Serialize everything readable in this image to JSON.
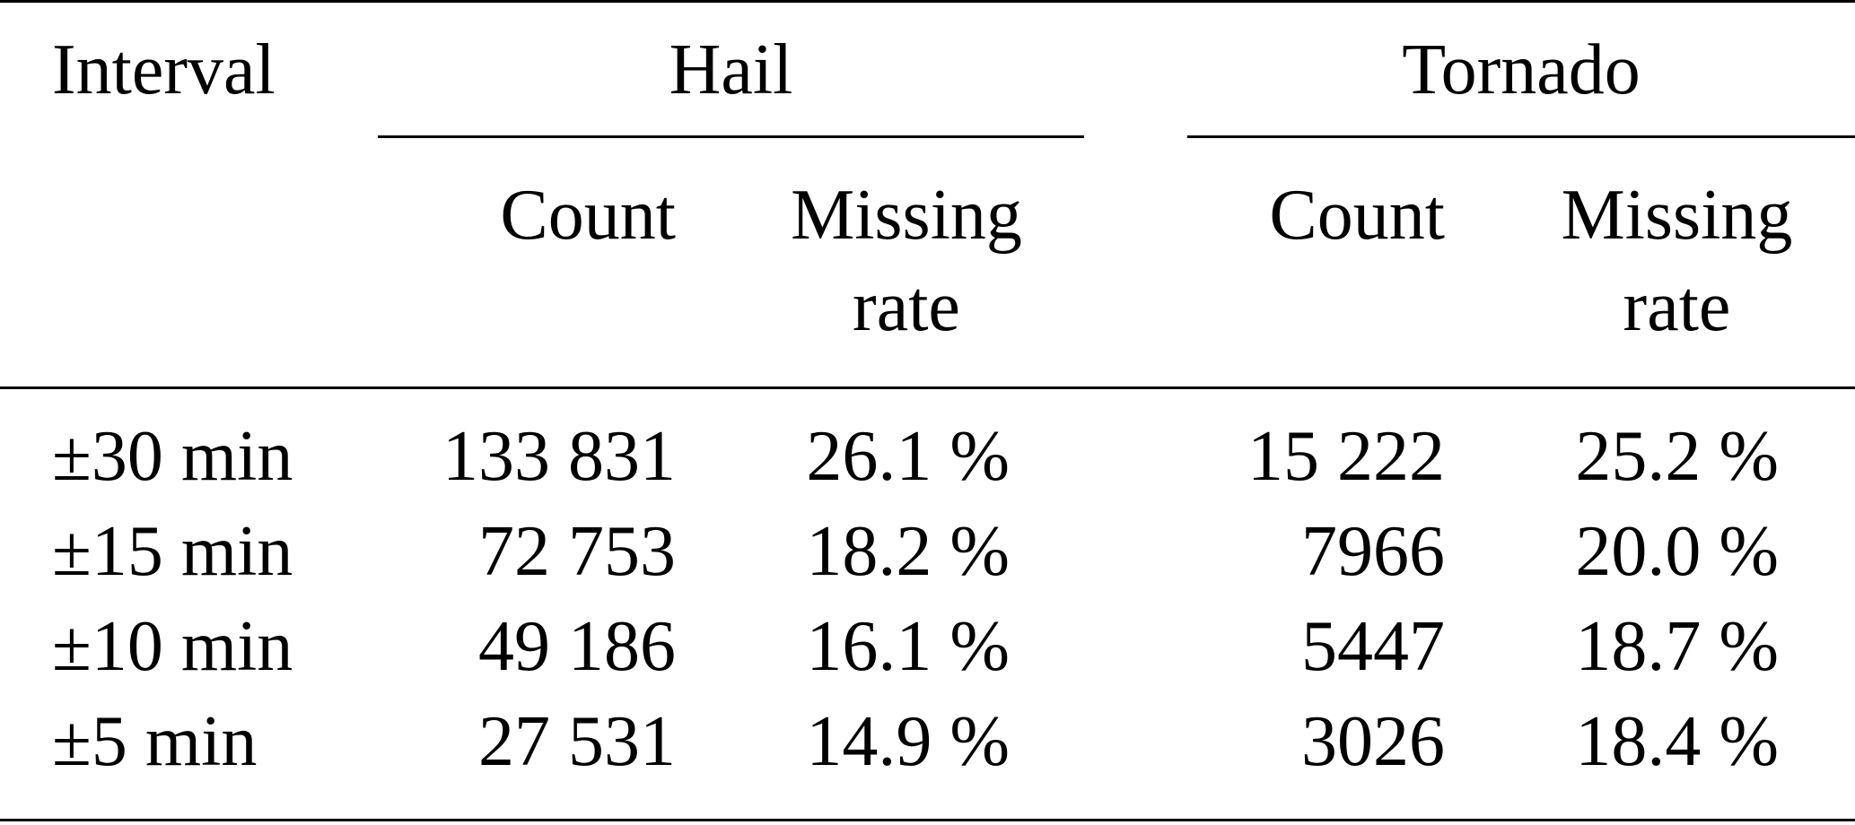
{
  "table": {
    "headers": {
      "interval": "Interval",
      "hail": "Hail",
      "tornado": "Tornado",
      "count": "Count",
      "missing_line1": "Missing",
      "missing_line2": "rate"
    },
    "rows": [
      {
        "interval": "±30 min",
        "hail_count": "133 831",
        "hail_missing": "26.1 %",
        "tornado_count": "15 222",
        "tornado_missing": "25.2 %"
      },
      {
        "interval": "±15 min",
        "hail_count": "72 753",
        "hail_missing": "18.2 %",
        "tornado_count": "7966",
        "tornado_missing": "20.0 %"
      },
      {
        "interval": "±10 min",
        "hail_count": "49 186",
        "hail_missing": "16.1 %",
        "tornado_count": "5447",
        "tornado_missing": "18.7 %"
      },
      {
        "interval": "±5 min",
        "hail_count": "27 531",
        "hail_missing": "14.9 %",
        "tornado_count": "3026",
        "tornado_missing": "18.4 %"
      }
    ]
  }
}
